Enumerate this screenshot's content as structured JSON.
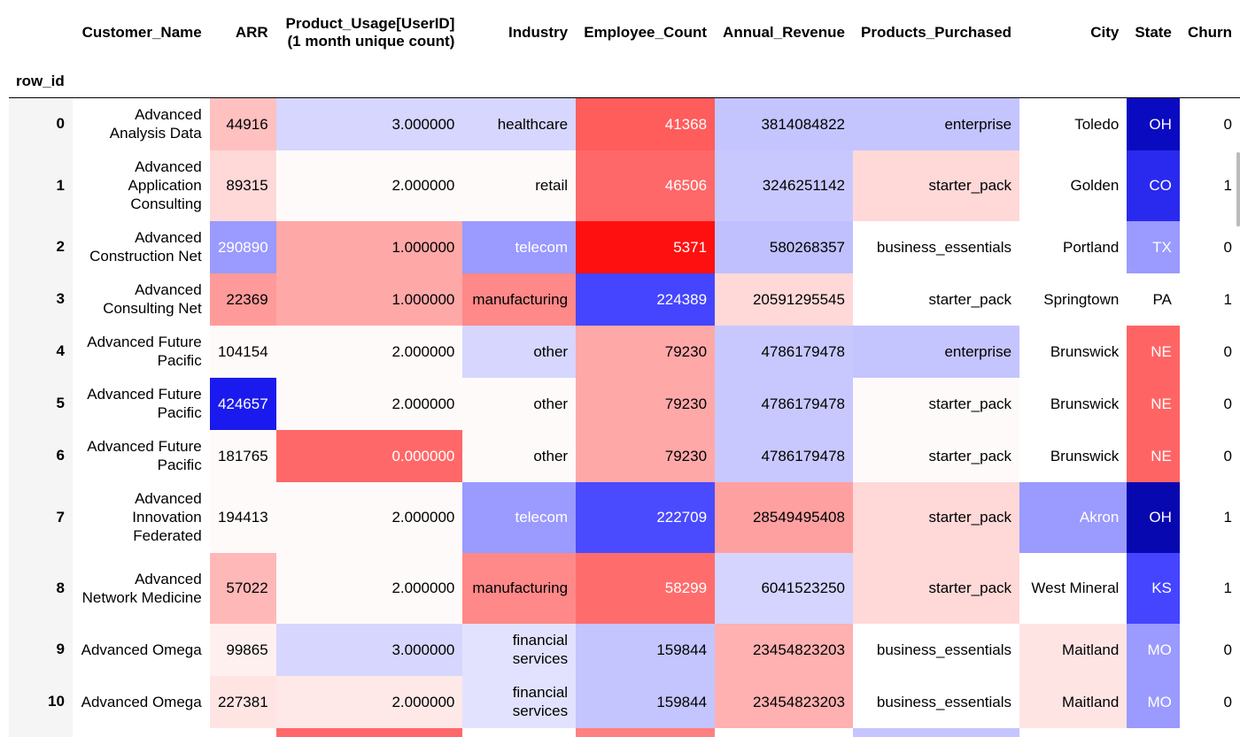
{
  "table": {
    "index_name": "row_id",
    "columns": [
      {
        "key": "Customer_Name",
        "label": "Customer_Name"
      },
      {
        "key": "ARR",
        "label": "ARR"
      },
      {
        "key": "Product_Usage",
        "label": "Product_Usage[UserID]\n(1 month unique count)"
      },
      {
        "key": "Industry",
        "label": "Industry"
      },
      {
        "key": "Employee_Count",
        "label": "Employee_Count"
      },
      {
        "key": "Annual_Revenue",
        "label": "Annual_Revenue"
      },
      {
        "key": "Products_Purchased",
        "label": "Products_Purchased"
      },
      {
        "key": "City",
        "label": "City"
      },
      {
        "key": "State",
        "label": "State"
      },
      {
        "key": "Churn",
        "label": "Churn"
      }
    ],
    "rows": [
      {
        "id": "0",
        "cells": [
          "Advanced Analysis Data",
          "44916",
          "3.000000",
          "healthcare",
          "41368",
          "3814084822",
          "enterprise",
          "Toledo",
          "OH",
          "0"
        ]
      },
      {
        "id": "1",
        "cells": [
          "Advanced Application Consulting",
          "89315",
          "2.000000",
          "retail",
          "46506",
          "3246251142",
          "starter_pack",
          "Golden",
          "CO",
          "1"
        ]
      },
      {
        "id": "2",
        "cells": [
          "Advanced Construction Net",
          "290890",
          "1.000000",
          "telecom",
          "5371",
          "580268357",
          "business_essentials",
          "Portland",
          "TX",
          "0"
        ]
      },
      {
        "id": "3",
        "cells": [
          "Advanced Consulting Net",
          "22369",
          "1.000000",
          "manufacturing",
          "224389",
          "20591295545",
          "starter_pack",
          "Springtown",
          "PA",
          "1"
        ]
      },
      {
        "id": "4",
        "cells": [
          "Advanced Future Pacific",
          "104154",
          "2.000000",
          "other",
          "79230",
          "4786179478",
          "enterprise",
          "Brunswick",
          "NE",
          "0"
        ]
      },
      {
        "id": "5",
        "cells": [
          "Advanced Future Pacific",
          "424657",
          "2.000000",
          "other",
          "79230",
          "4786179478",
          "starter_pack",
          "Brunswick",
          "NE",
          "0"
        ]
      },
      {
        "id": "6",
        "cells": [
          "Advanced Future Pacific",
          "181765",
          "0.000000",
          "other",
          "79230",
          "4786179478",
          "starter_pack",
          "Brunswick",
          "NE",
          "0"
        ]
      },
      {
        "id": "7",
        "cells": [
          "Advanced Innovation Federated",
          "194413",
          "2.000000",
          "telecom",
          "222709",
          "28549495408",
          "starter_pack",
          "Akron",
          "OH",
          "1"
        ]
      },
      {
        "id": "8",
        "cells": [
          "Advanced Network Medicine",
          "57022",
          "2.000000",
          "manufacturing",
          "58299",
          "6041523250",
          "starter_pack",
          "West Mineral",
          "KS",
          "1"
        ]
      },
      {
        "id": "9",
        "cells": [
          "Advanced Omega",
          "99865",
          "3.000000",
          "financial services",
          "159844",
          "23454823203",
          "business_essentials",
          "Maitland",
          "MO",
          "0"
        ]
      },
      {
        "id": "10",
        "cells": [
          "Advanced Omega",
          "227381",
          "2.000000",
          "financial services",
          "159844",
          "23454823203",
          "business_essentials",
          "Maitland",
          "MO",
          "0"
        ]
      }
    ],
    "cell_colors": [
      [
        "#ffffff",
        "#ffc0c0",
        "#d6d6ff",
        "#d6d6ff",
        "#ff5c5c",
        "#c4c4ff",
        "#c4c4ff",
        "#ffffff",
        "#0a0ac0",
        "#ffffff"
      ],
      [
        "#ffffff",
        "#ffd8d8",
        "#fffafa",
        "#fffafa",
        "#ff6868",
        "#c8c8ff",
        "#ffd8d8",
        "#ffffff",
        "#2a2aee",
        "#ffffff"
      ],
      [
        "#ffffff",
        "#9a9aff",
        "#ffa8a8",
        "#9a9aff",
        "#ff1010",
        "#c0c0ff",
        "#ffffff",
        "#ffffff",
        "#9a9aff",
        "#ffffff"
      ],
      [
        "#ffffff",
        "#ff9a9a",
        "#ffa8a8",
        "#ff8888",
        "#4545ff",
        "#ffd8d8",
        "#ffffff",
        "#ffffff",
        "#ffffff",
        "#ffffff"
      ],
      [
        "#ffffff",
        "#fffafa",
        "#fffafa",
        "#d6d6ff",
        "#ffa8a8",
        "#c8c8ff",
        "#c4c4ff",
        "#ffffff",
        "#ff6464",
        "#ffffff"
      ],
      [
        "#ffffff",
        "#1a1aee",
        "#fffafa",
        "#fffafa",
        "#ffa8a8",
        "#c8c8ff",
        "#fffafa",
        "#ffffff",
        "#ff6464",
        "#ffffff"
      ],
      [
        "#ffffff",
        "#fffafa",
        "#ff6868",
        "#fffafa",
        "#ffa8a8",
        "#c8c8ff",
        "#fffafa",
        "#ffffff",
        "#ff6464",
        "#ffffff"
      ],
      [
        "#ffffff",
        "#fffafa",
        "#fffafa",
        "#9a9aff",
        "#4a4aff",
        "#ffa0a0",
        "#ffd8d8",
        "#9a9aff",
        "#0808b0",
        "#ffffff"
      ],
      [
        "#ffffff",
        "#ffb8b8",
        "#fffafa",
        "#ff8888",
        "#ff6c6c",
        "#d4d4ff",
        "#ffd8d8",
        "#ffffff",
        "#4545ff",
        "#ffffff"
      ],
      [
        "#ffffff",
        "#fff0f0",
        "#d6d6ff",
        "#e2e2ff",
        "#c4c4ff",
        "#ffb0b0",
        "#ffffff",
        "#ffe4e4",
        "#9a9aff",
        "#ffffff"
      ],
      [
        "#ffffff",
        "#ffe4e4",
        "#ffe8e8",
        "#e2e2ff",
        "#c4c4ff",
        "#ffb0b0",
        "#ffffff",
        "#ffe4e4",
        "#9a9aff",
        "#ffffff"
      ]
    ],
    "light_text_cells": [
      [
        4,
        8
      ],
      [
        4,
        8
      ],
      [
        1,
        3,
        4,
        8
      ],
      [
        4
      ],
      [
        8
      ],
      [
        1,
        8
      ],
      [
        2,
        8
      ],
      [
        3,
        4,
        7,
        8
      ],
      [
        4,
        8
      ],
      [
        8
      ],
      [
        8
      ]
    ],
    "partial_row_colors": [
      "#ffffff",
      "#ffffff",
      "#ff6868",
      "#ffffff",
      "#ff8080",
      "#ffffff",
      "#c4c4ff",
      "#ffffff",
      "#ffffff",
      "#ffffff"
    ]
  },
  "chart_data": {
    "type": "table",
    "title": "",
    "columns": [
      "row_id",
      "Customer_Name",
      "ARR",
      "Product_Usage[UserID] (1 month unique count)",
      "Industry",
      "Employee_Count",
      "Annual_Revenue",
      "Products_Purchased",
      "City",
      "State",
      "Churn"
    ],
    "rows": [
      [
        0,
        "Advanced Analysis Data",
        44916,
        3.0,
        "healthcare",
        41368,
        3814084822,
        "enterprise",
        "Toledo",
        "OH",
        0
      ],
      [
        1,
        "Advanced Application Consulting",
        89315,
        2.0,
        "retail",
        46506,
        3246251142,
        "starter_pack",
        "Golden",
        "CO",
        1
      ],
      [
        2,
        "Advanced Construction Net",
        290890,
        1.0,
        "telecom",
        5371,
        580268357,
        "business_essentials",
        "Portland",
        "TX",
        0
      ],
      [
        3,
        "Advanced Consulting Net",
        22369,
        1.0,
        "manufacturing",
        224389,
        20591295545,
        "starter_pack",
        "Springtown",
        "PA",
        1
      ],
      [
        4,
        "Advanced Future Pacific",
        104154,
        2.0,
        "other",
        79230,
        4786179478,
        "enterprise",
        "Brunswick",
        "NE",
        0
      ],
      [
        5,
        "Advanced Future Pacific",
        424657,
        2.0,
        "other",
        79230,
        4786179478,
        "starter_pack",
        "Brunswick",
        "NE",
        0
      ],
      [
        6,
        "Advanced Future Pacific",
        181765,
        0.0,
        "other",
        79230,
        4786179478,
        "starter_pack",
        "Brunswick",
        "NE",
        0
      ],
      [
        7,
        "Advanced Innovation Federated",
        194413,
        2.0,
        "telecom",
        222709,
        28549495408,
        "starter_pack",
        "Akron",
        "OH",
        1
      ],
      [
        8,
        "Advanced Network Medicine",
        57022,
        2.0,
        "manufacturing",
        58299,
        6041523250,
        "starter_pack",
        "West Mineral",
        "KS",
        1
      ],
      [
        9,
        "Advanced Omega",
        99865,
        3.0,
        "financial services",
        159844,
        23454823203,
        "business_essentials",
        "Maitland",
        "MO",
        0
      ],
      [
        10,
        "Advanced Omega",
        227381,
        2.0,
        "financial services",
        159844,
        23454823203,
        "business_essentials",
        "Maitland",
        "MO",
        0
      ]
    ]
  }
}
